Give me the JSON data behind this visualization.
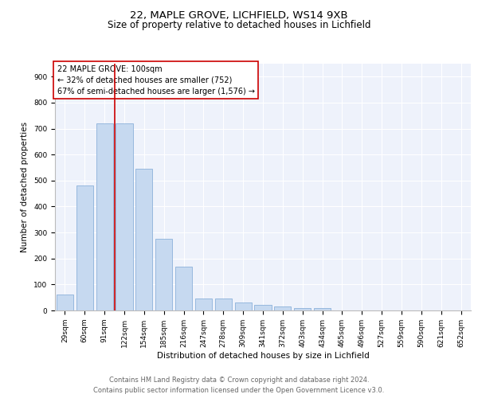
{
  "title1": "22, MAPLE GROVE, LICHFIELD, WS14 9XB",
  "title2": "Size of property relative to detached houses in Lichfield",
  "xlabel": "Distribution of detached houses by size in Lichfield",
  "ylabel": "Number of detached properties",
  "categories": [
    "29sqm",
    "60sqm",
    "91sqm",
    "122sqm",
    "154sqm",
    "185sqm",
    "216sqm",
    "247sqm",
    "278sqm",
    "309sqm",
    "341sqm",
    "372sqm",
    "403sqm",
    "434sqm",
    "465sqm",
    "496sqm",
    "527sqm",
    "559sqm",
    "590sqm",
    "621sqm",
    "652sqm"
  ],
  "values": [
    60,
    480,
    720,
    720,
    545,
    275,
    170,
    47,
    47,
    32,
    20,
    15,
    8,
    8,
    0,
    0,
    0,
    0,
    0,
    0,
    0
  ],
  "bar_color": "#c6d9f0",
  "bar_edge_color": "#7ca6d4",
  "vline_x_index": 2,
  "vline_color": "#cc0000",
  "annotation_line1": "22 MAPLE GROVE: 100sqm",
  "annotation_line2": "← 32% of detached houses are smaller (752)",
  "annotation_line3": "67% of semi-detached houses are larger (1,576) →",
  "ylim": [
    0,
    950
  ],
  "yticks": [
    0,
    100,
    200,
    300,
    400,
    500,
    600,
    700,
    800,
    900
  ],
  "bg_color": "#eef2fb",
  "footer1": "Contains HM Land Registry data © Crown copyright and database right 2024.",
  "footer2": "Contains public sector information licensed under the Open Government Licence v3.0.",
  "title_fontsize": 9.5,
  "subtitle_fontsize": 8.5,
  "axis_label_fontsize": 7.5,
  "tick_fontsize": 6.5,
  "annotation_fontsize": 7,
  "footer_fontsize": 6
}
